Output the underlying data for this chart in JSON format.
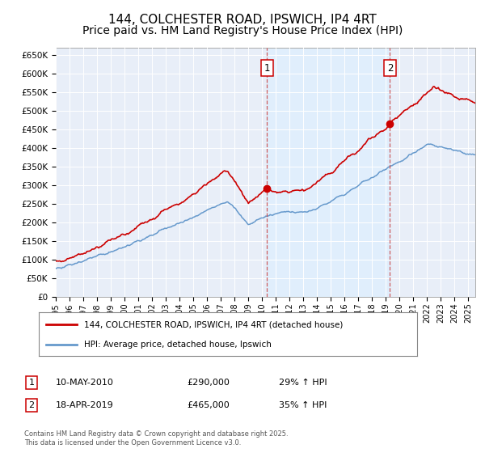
{
  "title": "144, COLCHESTER ROAD, IPSWICH, IP4 4RT",
  "subtitle": "Price paid vs. HM Land Registry's House Price Index (HPI)",
  "ylabel_ticks": [
    "£0",
    "£50K",
    "£100K",
    "£150K",
    "£200K",
    "£250K",
    "£300K",
    "£350K",
    "£400K",
    "£450K",
    "£500K",
    "£550K",
    "£600K",
    "£650K"
  ],
  "ylim": [
    0,
    670000
  ],
  "xlim_start": 1995.0,
  "xlim_end": 2025.5,
  "marker1_x": 2010.36,
  "marker2_x": 2019.3,
  "marker1_val_red": 290000,
  "marker2_val_red": 465000,
  "marker1_val_blue": 224000,
  "marker2_val_blue": 344000,
  "marker1_date": "10-MAY-2010",
  "marker1_price": "£290,000",
  "marker1_hpi": "29% ↑ HPI",
  "marker2_date": "18-APR-2019",
  "marker2_price": "£465,000",
  "marker2_hpi": "35% ↑ HPI",
  "line1_color": "#cc0000",
  "line2_color": "#6699cc",
  "shade_color": "#ddeeff",
  "plot_bg": "#e8eef8",
  "legend1_label": "144, COLCHESTER ROAD, IPSWICH, IP4 4RT (detached house)",
  "legend2_label": "HPI: Average price, detached house, Ipswich",
  "footer": "Contains HM Land Registry data © Crown copyright and database right 2025.\nThis data is licensed under the Open Government Licence v3.0.",
  "title_fontsize": 11,
  "subtitle_fontsize": 10
}
